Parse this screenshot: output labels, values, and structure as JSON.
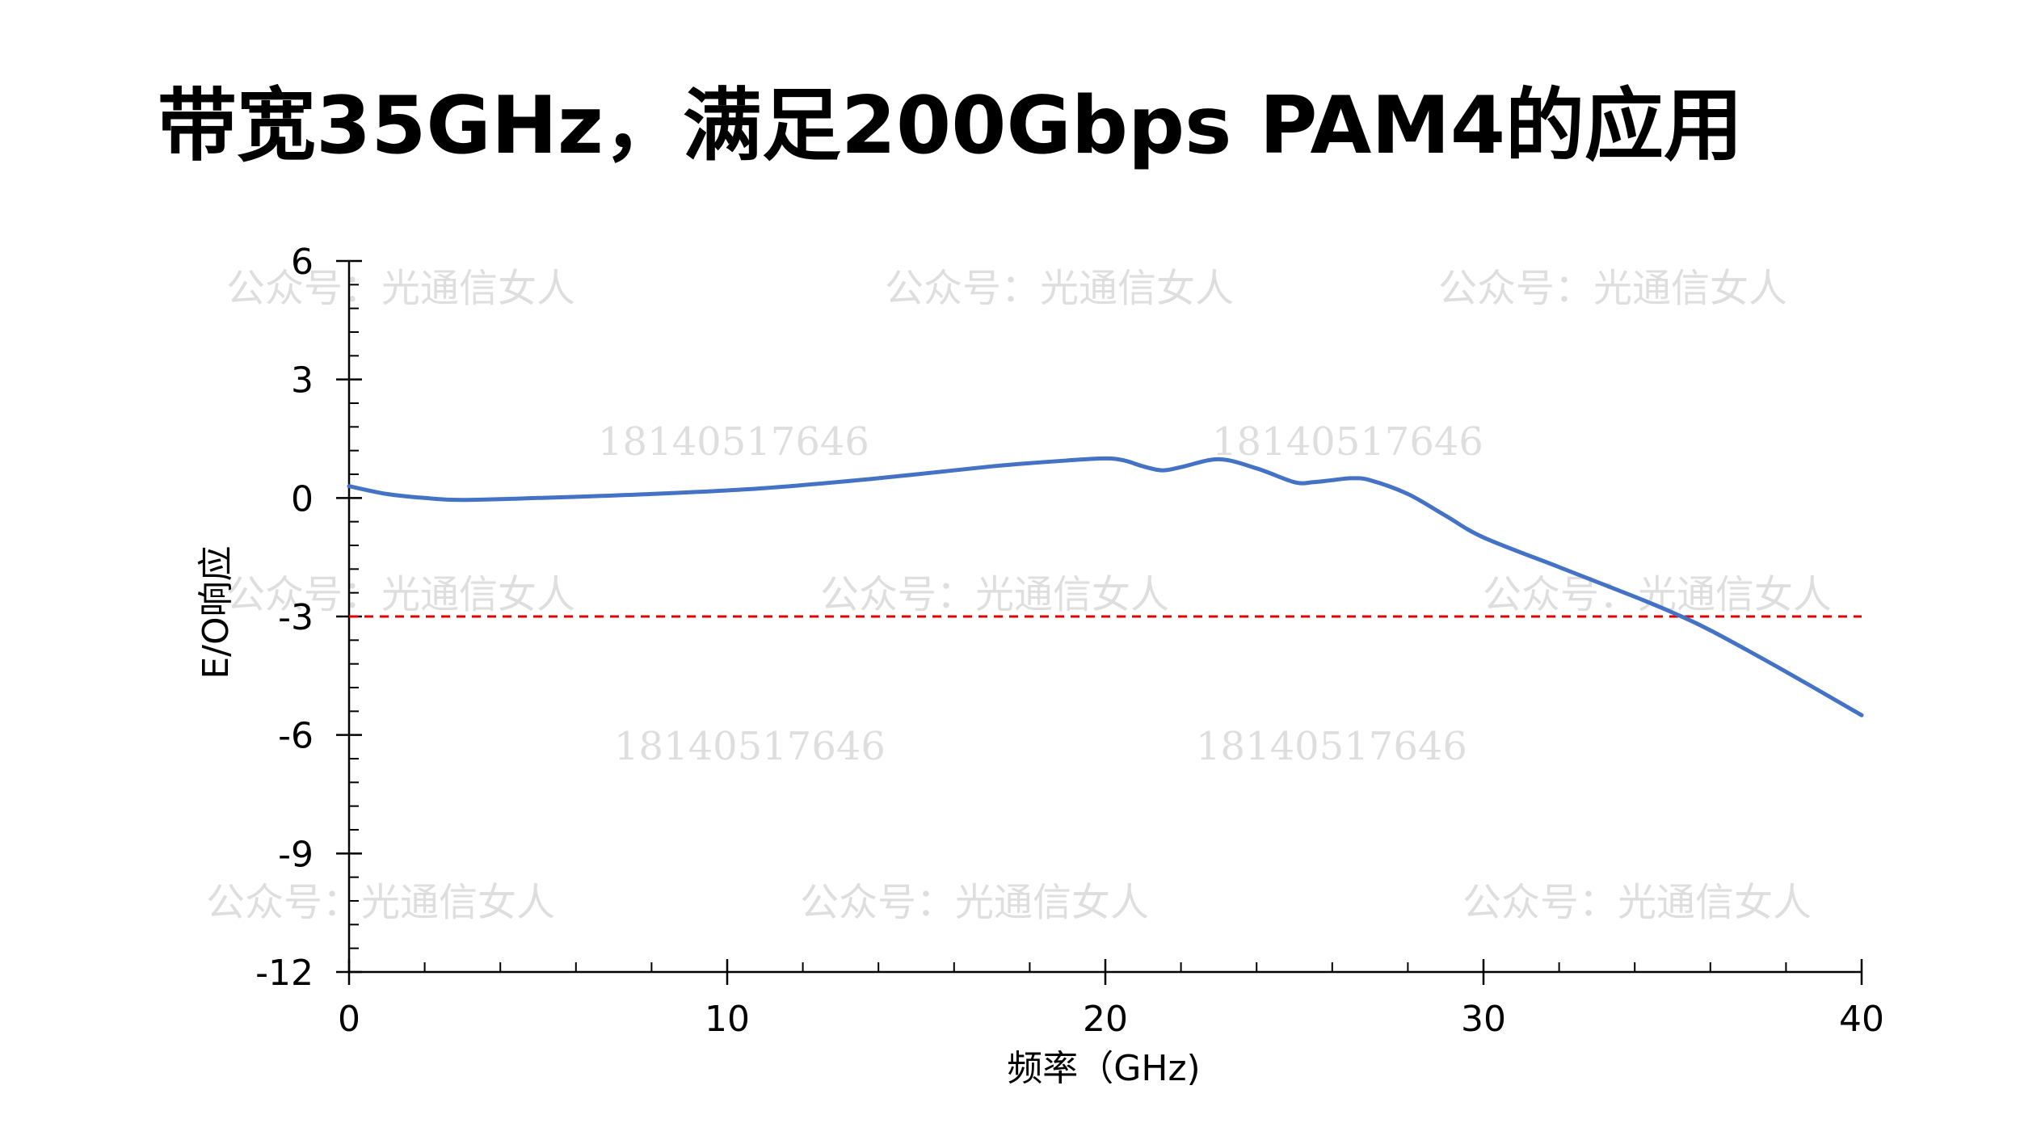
{
  "page": {
    "title": "带宽35GHz，满足200Gbps PAM4的应用"
  },
  "watermarks": [
    "公众号：光通信女人",
    "18140517646"
  ],
  "chart_data": {
    "type": "line",
    "title": "带宽35GHz，满足200Gbps PAM4的应用",
    "xlabel": "频率（GHz)",
    "ylabel": "E/O响应",
    "xlim": [
      0,
      40
    ],
    "ylim": [
      -12,
      6
    ],
    "x_ticks": [
      0,
      10,
      20,
      30,
      40
    ],
    "y_ticks": [
      6,
      3,
      0,
      -3,
      -6,
      -9,
      -12
    ],
    "x_tick_labels": [
      "0",
      "10",
      "20",
      "30",
      "40"
    ],
    "y_tick_labels": [
      "6",
      "3",
      "0",
      "-3",
      "-6",
      "-9",
      "-12"
    ],
    "x_minor_step": 2,
    "y_minor_step": 0.6,
    "grid": false,
    "legend": "none",
    "series": [
      {
        "color": "#4472C4",
        "x": [
          0,
          1,
          2,
          3,
          5,
          8,
          11,
          14,
          17,
          19,
          20,
          20.5,
          21,
          21.5,
          22,
          23,
          24,
          25,
          25.5,
          26,
          26.5,
          27,
          28,
          29,
          30,
          32,
          34,
          35,
          36,
          38,
          40
        ],
        "y": [
          0.3,
          0.1,
          0.0,
          -0.05,
          0.0,
          0.1,
          0.25,
          0.5,
          0.8,
          0.95,
          1.0,
          0.95,
          0.8,
          0.7,
          0.78,
          0.98,
          0.75,
          0.4,
          0.4,
          0.45,
          0.5,
          0.45,
          0.1,
          -0.45,
          -1.0,
          -1.75,
          -2.5,
          -2.9,
          -3.35,
          -4.4,
          -5.5
        ]
      }
    ],
    "reference_line": {
      "y": -3,
      "color": "#E00000",
      "style": "dashed"
    }
  }
}
